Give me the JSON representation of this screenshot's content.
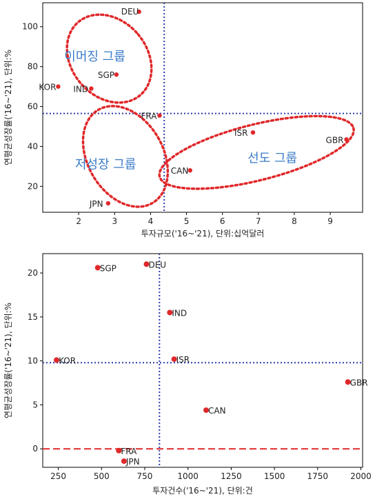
{
  "chart_data": [
    {
      "type": "scatter",
      "xlabel": "투자규모('16~'21), 단위:십억달러",
      "ylabel": "연평균성장률('16~'21), 단위:%",
      "xlim": [
        1.0,
        9.9
      ],
      "ylim": [
        7,
        112
      ],
      "xticks": [
        2,
        3,
        4,
        5,
        6,
        7,
        8,
        9
      ],
      "yticks": [
        20,
        40,
        60,
        80,
        100
      ],
      "points": [
        {
          "label": "DEU",
          "x": 3.68,
          "y": 107.5
        },
        {
          "label": "SGP",
          "x": 3.05,
          "y": 76
        },
        {
          "label": "IND",
          "x": 2.35,
          "y": 69
        },
        {
          "label": "KOR",
          "x": 1.43,
          "y": 70
        },
        {
          "label": "FRA",
          "x": 4.25,
          "y": 55.5
        },
        {
          "label": "ISR",
          "x": 6.85,
          "y": 47
        },
        {
          "label": "GBR",
          "x": 9.45,
          "y": 43.5
        },
        {
          "label": "CAN",
          "x": 5.1,
          "y": 28
        },
        {
          "label": "JPN",
          "x": 2.82,
          "y": 11.5
        }
      ],
      "ref_lines": {
        "x": 4.38,
        "y": 56.5
      },
      "groups": [
        {
          "name": "이머징 그룹",
          "center": [
            2.85,
            84
          ],
          "radii": [
            1.05,
            24
          ],
          "rotate": 40
        },
        {
          "name": "저성장 그룹",
          "center": [
            3.3,
            35
          ],
          "radii": [
            1.05,
            27
          ],
          "rotate": 30
        },
        {
          "name": "선도 그룹",
          "center": [
            6.95,
            37
          ],
          "radii": [
            2.78,
            14
          ],
          "rotate": 14
        }
      ],
      "group_label_pos": [
        {
          "x": 1.6,
          "y": 83
        },
        {
          "x": 1.9,
          "y": 29
        },
        {
          "x": 6.7,
          "y": 32
        }
      ]
    },
    {
      "type": "scatter",
      "xlabel": "투자건수('16~'21), 단위:건",
      "ylabel": "연평균성장률('16~'21), 단위:%",
      "xlim": [
        160,
        2010
      ],
      "ylim": [
        -2.1,
        22.2
      ],
      "xticks": [
        250,
        500,
        750,
        1000,
        1250,
        1500,
        1750,
        2000
      ],
      "yticks": [
        0,
        5,
        10,
        15,
        20
      ],
      "points": [
        {
          "label": "SGP",
          "x": 478,
          "y": 20.6
        },
        {
          "label": "DEU",
          "x": 760,
          "y": 21.0
        },
        {
          "label": "IND",
          "x": 895,
          "y": 15.5
        },
        {
          "label": "KOR",
          "x": 240,
          "y": 10.1
        },
        {
          "label": "ISR",
          "x": 920,
          "y": 10.2
        },
        {
          "label": "GBR",
          "x": 1925,
          "y": 7.6
        },
        {
          "label": "CAN",
          "x": 1105,
          "y": 4.4
        },
        {
          "label": "FRA",
          "x": 600,
          "y": -0.2
        },
        {
          "label": "JPN",
          "x": 630,
          "y": -1.4
        }
      ],
      "ref_lines": {
        "x": 835,
        "y": 9.8
      },
      "zero_line": 0
    }
  ]
}
